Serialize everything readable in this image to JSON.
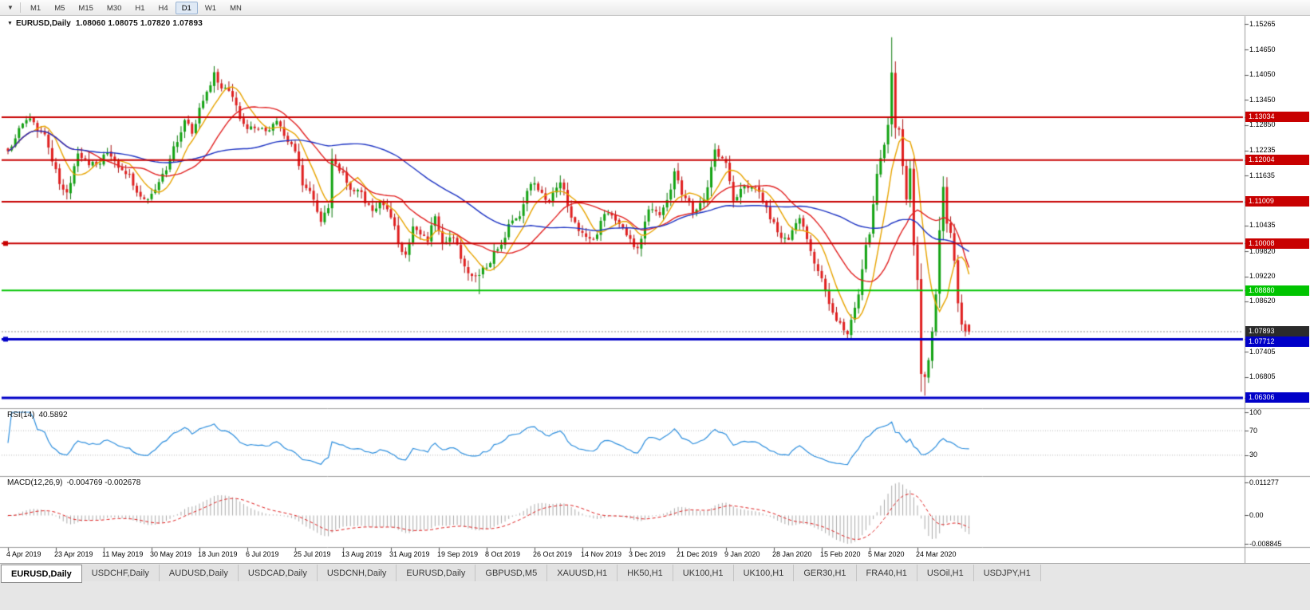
{
  "toolbar": {
    "timeframes": [
      {
        "label": "M1",
        "active": false
      },
      {
        "label": "M5",
        "active": false
      },
      {
        "label": "M15",
        "active": false
      },
      {
        "label": "M30",
        "active": false
      },
      {
        "label": "H1",
        "active": false
      },
      {
        "label": "H4",
        "active": false
      },
      {
        "label": "D1",
        "active": true
      },
      {
        "label": "W1",
        "active": false
      },
      {
        "label": "MN",
        "active": false
      }
    ]
  },
  "chart": {
    "symbol": "EURUSD,Daily",
    "ohlc": "1.08060 1.08075 1.07820 1.07893",
    "bid": "1.07893"
  },
  "price_scale": {
    "ticks": [
      "1.15265",
      "1.14650",
      "1.14050",
      "1.13450",
      "1.12850",
      "1.12235",
      "1.11635",
      "1.10435",
      "1.09820",
      "1.09220",
      "1.08620",
      "1.07405",
      "1.06805"
    ]
  },
  "rsi": {
    "label": "RSI(14)",
    "value": "40.5892",
    "period": 14,
    "axis": [
      "100",
      "70",
      "30"
    ],
    "level_lines": [
      70,
      30
    ],
    "line_color": "#2E8FDE"
  },
  "macd": {
    "label": "MACD(12,26,9)",
    "values": "-0.004769 -0.002678",
    "fast": 12,
    "slow": 26,
    "signal": 9,
    "axis": [
      "0.011277",
      "0.00",
      "-0.008845"
    ],
    "axis_top_value": 0.011277,
    "axis_bottom_value": -0.008845,
    "histogram_color": "#ABABAB",
    "signal_color": "#E02020"
  },
  "date_axis": {
    "labels": [
      "4 Apr 2019",
      "23 Apr 2019",
      "11 May 2019",
      "30 May 2019",
      "18 Jun 2019",
      "6 Jul 2019",
      "25 Jul 2019",
      "13 Aug 2019",
      "31 Aug 2019",
      "19 Sep 2019",
      "8 Oct 2019",
      "26 Oct 2019",
      "14 Nov 2019",
      "3 Dec 2019",
      "21 Dec 2019",
      "9 Jan 2020",
      "28 Jan 2020",
      "15 Feb 2020",
      "5 Mar 2020",
      "24 Mar 2020"
    ]
  },
  "tabs": [
    {
      "label": "EURUSD,Daily",
      "active": true
    },
    {
      "label": "USDCHF,Daily",
      "active": false
    },
    {
      "label": "AUDUSD,Daily",
      "active": false
    },
    {
      "label": "USDCAD,Daily",
      "active": false
    },
    {
      "label": "USDCNH,Daily",
      "active": false
    },
    {
      "label": "EURUSD,Daily",
      "active": false
    },
    {
      "label": "GBPUSD,M5",
      "active": false
    },
    {
      "label": "XAUUSD,H1",
      "active": false
    },
    {
      "label": "HK50,H1",
      "active": false
    },
    {
      "label": "UK100,H1",
      "active": false
    },
    {
      "label": "UK100,H1",
      "active": false
    },
    {
      "label": "GER30,H1",
      "active": false
    },
    {
      "label": "FRA40,H1",
      "active": false
    },
    {
      "label": "USOil,H1",
      "active": false
    },
    {
      "label": "USDJPY,H1",
      "active": false
    }
  ],
  "chart_data": {
    "type": "candlestick",
    "symbol": "EURUSD",
    "timeframe": "Daily",
    "x_range": [
      "4 Apr 2019",
      "7 Apr 2020"
    ],
    "price_range_visible": [
      1.0605,
      1.1542
    ],
    "num_candles": 262,
    "anchors": [
      [
        0,
        1.1221
      ],
      [
        2,
        1.126
      ],
      [
        4,
        1.1295
      ],
      [
        6,
        1.1305
      ],
      [
        8,
        1.127
      ],
      [
        10,
        1.1255
      ],
      [
        12,
        1.1195
      ],
      [
        14,
        1.115
      ],
      [
        16,
        1.1117
      ],
      [
        18,
        1.118
      ],
      [
        19,
        1.1215
      ],
      [
        21,
        1.12
      ],
      [
        24,
        1.1185
      ],
      [
        27,
        1.1225
      ],
      [
        30,
        1.119
      ],
      [
        33,
        1.116
      ],
      [
        36,
        1.1115
      ],
      [
        38,
        1.111
      ],
      [
        41,
        1.114
      ],
      [
        44,
        1.1205
      ],
      [
        46,
        1.125
      ],
      [
        48,
        1.129
      ],
      [
        50,
        1.127
      ],
      [
        52,
        1.132
      ],
      [
        54,
        1.137
      ],
      [
        56,
        1.1405
      ],
      [
        58,
        1.137
      ],
      [
        60,
        1.1365
      ],
      [
        62,
        1.133
      ],
      [
        64,
        1.128
      ],
      [
        67,
        1.1285
      ],
      [
        70,
        1.127
      ],
      [
        73,
        1.129
      ],
      [
        76,
        1.125
      ],
      [
        78,
        1.1225
      ],
      [
        80,
        1.1145
      ],
      [
        82,
        1.1125
      ],
      [
        84,
        1.108
      ],
      [
        85,
        1.1055
      ],
      [
        87,
        1.1085
      ],
      [
        88,
        1.12
      ],
      [
        90,
        1.118
      ],
      [
        93,
        1.113
      ],
      [
        95,
        1.1135
      ],
      [
        97,
        1.11
      ],
      [
        99,
        1.108
      ],
      [
        101,
        1.1095
      ],
      [
        103,
        1.109
      ],
      [
        105,
        1.104
      ],
      [
        106,
        1.0995
      ],
      [
        108,
        1.097
      ],
      [
        110,
        1.1035
      ],
      [
        112,
        1.103
      ],
      [
        114,
        1.101
      ],
      [
        116,
        1.107
      ],
      [
        118,
        1.1005
      ],
      [
        121,
        1.1015
      ],
      [
        124,
        1.0945
      ],
      [
        126,
        1.0915
      ],
      [
        128,
        1.0932
      ],
      [
        130,
        1.0945
      ],
      [
        132,
        1.0975
      ],
      [
        134,
        1.0995
      ],
      [
        136,
        1.104
      ],
      [
        139,
        1.107
      ],
      [
        142,
        1.115
      ],
      [
        144,
        1.1135
      ],
      [
        147,
        1.11
      ],
      [
        150,
        1.115
      ],
      [
        153,
        1.107
      ],
      [
        156,
        1.102
      ],
      [
        159,
        1.1005
      ],
      [
        162,
        1.107
      ],
      [
        165,
        1.106
      ],
      [
        168,
        1.102
      ],
      [
        171,
        1.0985
      ],
      [
        174,
        1.108
      ],
      [
        177,
        1.1065
      ],
      [
        180,
        1.113
      ],
      [
        181,
        1.117
      ],
      [
        183,
        1.1125
      ],
      [
        186,
        1.108
      ],
      [
        189,
        1.11
      ],
      [
        192,
        1.1225
      ],
      [
        195,
        1.1195
      ],
      [
        197,
        1.111
      ],
      [
        200,
        1.1135
      ],
      [
        203,
        1.1135
      ],
      [
        206,
        1.1085
      ],
      [
        209,
        1.1025
      ],
      [
        212,
        1.101
      ],
      [
        215,
        1.106
      ],
      [
        218,
        1.098
      ],
      [
        221,
        1.0915
      ],
      [
        224,
        1.083
      ],
      [
        228,
        1.0785
      ],
      [
        231,
        1.088
      ],
      [
        233,
        1.1
      ],
      [
        234,
        1.1025
      ],
      [
        236,
        1.117
      ],
      [
        238,
        1.124
      ],
      [
        239,
        1.1285
      ],
      [
        240,
        1.141
      ],
      [
        241,
        1.128
      ],
      [
        242,
        1.127
      ],
      [
        243,
        1.1185
      ],
      [
        244,
        1.1105
      ],
      [
        245,
        1.118
      ],
      [
        246,
        1.0995
      ],
      [
        247,
        1.0915
      ],
      [
        248,
        1.069
      ],
      [
        249,
        1.068
      ],
      [
        250,
        1.0725
      ],
      [
        251,
        1.079
      ],
      [
        252,
        1.088
      ],
      [
        253,
        1.103
      ],
      [
        254,
        1.114
      ],
      [
        255,
        1.1045
      ],
      [
        256,
        1.103
      ],
      [
        257,
        1.096
      ],
      [
        258,
        1.0855
      ],
      [
        259,
        1.081
      ],
      [
        260,
        1.079
      ],
      [
        261,
        1.07893
      ]
    ],
    "spikes": [
      {
        "day": 16,
        "low": 1.111
      },
      {
        "day": 128,
        "low": 1.0879
      },
      {
        "day": 228,
        "low": 1.0778
      },
      {
        "day": 240,
        "high": 1.1495
      },
      {
        "day": 249,
        "low": 1.0636
      },
      {
        "day": 254,
        "high": 1.1147
      }
    ],
    "last_candle": {
      "o": 1.0806,
      "h": 1.08075,
      "l": 1.0782,
      "c": 1.07893
    },
    "levels": [
      {
        "price": 1.13034,
        "label": "1.13034",
        "color": "#C80000",
        "width": 2,
        "handle": false
      },
      {
        "price": 1.12004,
        "label": "1.12004",
        "color": "#C80000",
        "width": 2,
        "handle": false
      },
      {
        "price": 1.11009,
        "label": "1.11009",
        "color": "#C80000",
        "width": 2,
        "handle": false
      },
      {
        "price": 1.10008,
        "label": "1.10008",
        "color": "#C80000",
        "width": 2,
        "handle": true
      },
      {
        "price": 1.0888,
        "label": "1.08880",
        "color": "#00C400",
        "width": 2,
        "handle": false
      },
      {
        "price": 1.07712,
        "label": "1.07712",
        "color": "#0000C8",
        "width": 3,
        "handle": true
      },
      {
        "price": 1.06306,
        "label": "1.06306",
        "color": "#0000C8",
        "width": 3,
        "handle": false
      }
    ],
    "moving_averages": [
      {
        "period": 8,
        "color": "#E8A400"
      },
      {
        "period": 20,
        "color": "#E22222"
      },
      {
        "period": 55,
        "color": "#1F35C4"
      }
    ],
    "colors": {
      "up": "#12A312",
      "down": "#E01F1F",
      "wick_up": "#0E7A0E",
      "wick_down": "#A81414",
      "bid_line": "#909090",
      "bid_badge": "#2B2B2B"
    }
  }
}
